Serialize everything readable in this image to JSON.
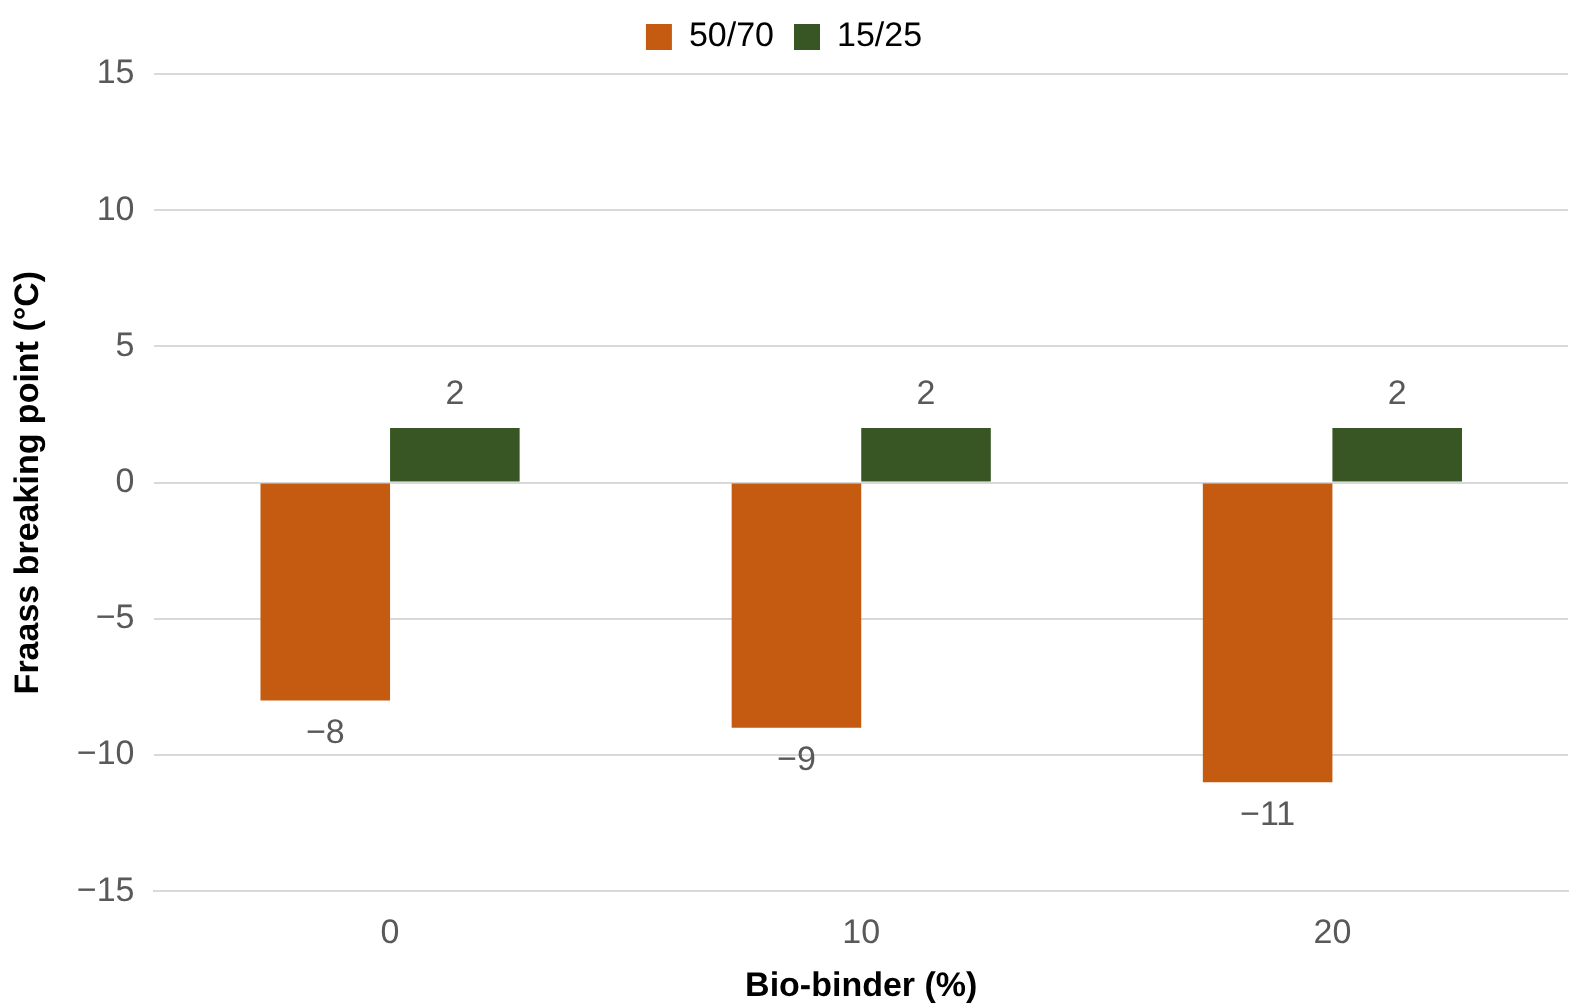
{
  "chart_data": {
    "type": "bar",
    "xlabel": "Bio-binder (%)",
    "ylabel": "Fraass breaking point (°C)",
    "categories": [
      "0",
      "10",
      "20"
    ],
    "series": [
      {
        "name": "50/70",
        "color": "#c55a11",
        "values": [
          -8,
          -9,
          -11
        ],
        "value_labels": [
          "−8",
          "−9",
          "−11"
        ]
      },
      {
        "name": "15/25",
        "color": "#375623",
        "values": [
          2,
          2,
          2
        ],
        "value_labels": [
          "2",
          "2",
          "2"
        ]
      }
    ],
    "ylim": [
      -15,
      15
    ],
    "yticks": [
      {
        "value": -15,
        "label": "−15"
      },
      {
        "value": -10,
        "label": "−10"
      },
      {
        "value": -5,
        "label": "−5"
      },
      0,
      5,
      10,
      15
    ],
    "grid": "y",
    "legend": "top"
  }
}
